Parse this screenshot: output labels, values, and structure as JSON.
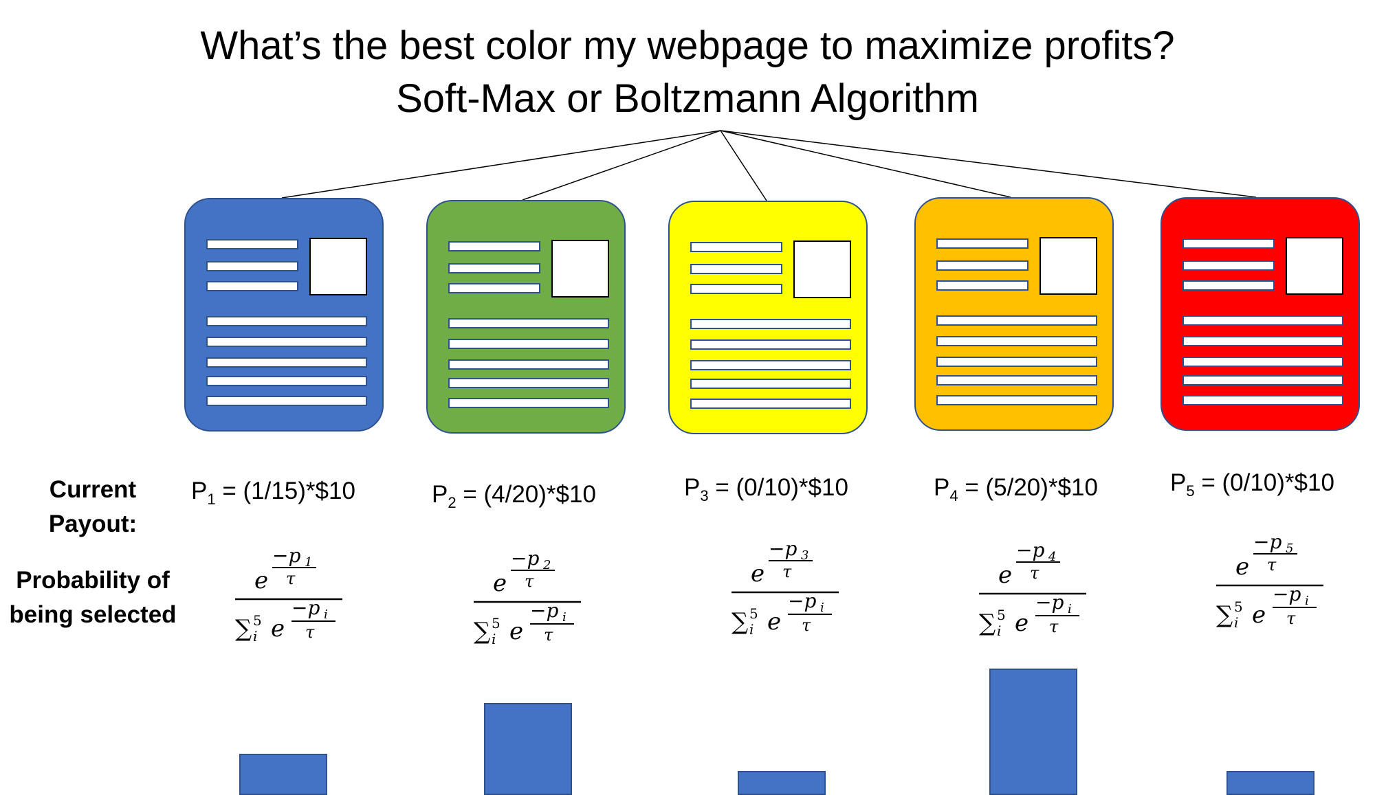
{
  "title": {
    "line1": "What’s the best color my webpage to maximize profits?",
    "line2": "Soft-Max or Boltzmann Algorithm"
  },
  "row_labels": {
    "payout_line1": "Current",
    "payout_line2": "Payout:",
    "probability_line1": "Probability of",
    "probability_line2": "being selected"
  },
  "variants": [
    {
      "name": "blue",
      "color": "#4472c4",
      "payout_prefix": "P",
      "index": "1",
      "payout_expr": " = (1/15)*$10",
      "formula_sub": "1",
      "bar_value": 0.038
    },
    {
      "name": "green",
      "color": "#70ad47",
      "payout_prefix": "P",
      "index": "2",
      "payout_expr": " = (4/20)*$10",
      "formula_sub": "2",
      "bar_value": 0.108
    },
    {
      "name": "yellow",
      "color": "#ffff00",
      "payout_prefix": "P",
      "index": "3",
      "payout_expr": " = (0/10)*$10",
      "formula_sub": "3",
      "bar_value": 0.014
    },
    {
      "name": "orange",
      "color": "#ffc000",
      "payout_prefix": "P",
      "index": "4",
      "payout_expr": " = (5/20)*$10",
      "formula_sub": "4",
      "bar_value": 0.155
    },
    {
      "name": "red",
      "color": "#ff0000",
      "payout_prefix": "P",
      "index": "5",
      "payout_expr": " = (0/10)*$10",
      "formula_sub": "5",
      "bar_value": 0.014
    }
  ],
  "formula": {
    "base": "e",
    "minus_p": "−p",
    "tau": "τ",
    "sum": "∑",
    "sum_upper": "5",
    "sum_lower": "i",
    "index_i": "i"
  }
}
